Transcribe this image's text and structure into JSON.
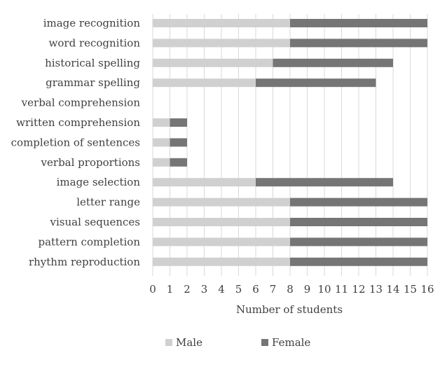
{
  "chart_data": {
    "type": "bar",
    "orientation": "horizontal",
    "stacked": true,
    "categories": [
      "image recognition",
      "word recognition",
      "historical spelling",
      "grammar spelling",
      "verbal comprehension",
      "written comprehension",
      "completion of sentences",
      "verbal proportions",
      "image selection",
      "letter range",
      "visual sequences",
      "pattern completion",
      "rhythm reproduction"
    ],
    "series": [
      {
        "name": "Male",
        "color": "#d0d0d0",
        "values": [
          8,
          8,
          7,
          6,
          0,
          1,
          1,
          1,
          6,
          8,
          8,
          8,
          8
        ]
      },
      {
        "name": "Female",
        "color": "#757575",
        "values": [
          8,
          8,
          7,
          7,
          0,
          1,
          1,
          1,
          8,
          8,
          8,
          8,
          8
        ]
      }
    ],
    "xlim": [
      0,
      16
    ],
    "xticks": [
      "0",
      "1",
      "2",
      "3",
      "4",
      "5",
      "6",
      "7",
      "8",
      "9",
      "10",
      "11",
      "12",
      "13",
      "14",
      "15",
      "16"
    ],
    "xlabel": "Number of students",
    "ylabel": "",
    "title": "",
    "grid": true,
    "legend_position": "bottom"
  }
}
